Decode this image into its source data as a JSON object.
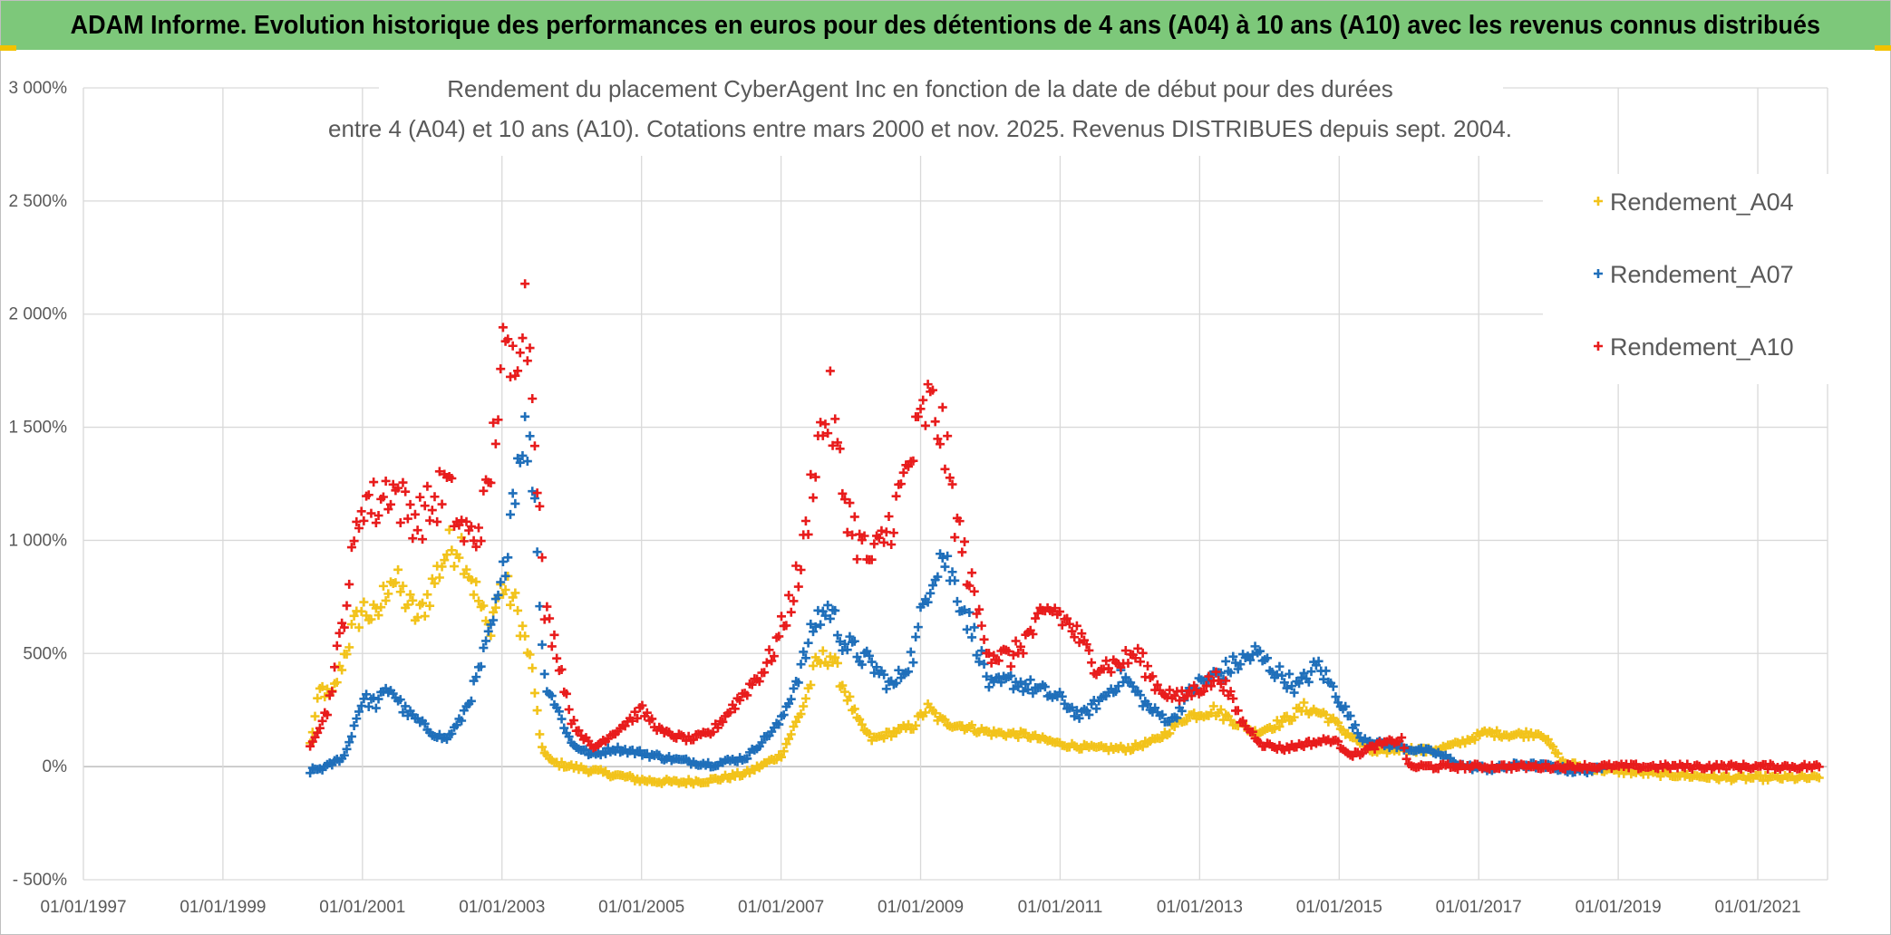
{
  "header": {
    "title": "ADAM Informe. Evolution historique des performances en euros pour des détentions de 4 ans (A04) à 10 ans (A10) avec les revenus connus distribués"
  },
  "chart_data": {
    "type": "scatter",
    "title_line1": "Rendement du placement CyberAgent Inc en fonction de la date de début pour des durées",
    "title_line2": "entre 4 (A04) et 10 ans (A10). Cotations entre mars 2000 et nov. 2025. Revenus DISTRIBUES depuis sept. 2004.",
    "xlabel": "",
    "ylabel": "",
    "x_ticks": [
      "01/01/1997",
      "01/01/1999",
      "01/01/2001",
      "01/01/2003",
      "01/01/2005",
      "01/01/2007",
      "01/01/2009",
      "01/01/2011",
      "01/01/2013",
      "01/01/2015",
      "01/01/2017",
      "01/01/2019",
      "01/01/2021"
    ],
    "x_range": [
      1997.0,
      2022.0
    ],
    "y_ticks": [
      "- 500%",
      "0%",
      "500%",
      "1 000%",
      "1 500%",
      "2 000%",
      "2 500%",
      "3 000%"
    ],
    "y_range": [
      -500,
      3000
    ],
    "legend_position": "right",
    "series": [
      {
        "name": "Rendement_A04",
        "color": "#f2c31b",
        "x_range": [
          2000.25,
          2021.9
        ],
        "points": [
          [
            2000.25,
            100
          ],
          [
            2000.4,
            350
          ],
          [
            2000.55,
            300
          ],
          [
            2000.7,
            450
          ],
          [
            2000.85,
            600
          ],
          [
            2001.0,
            700
          ],
          [
            2001.2,
            650
          ],
          [
            2001.4,
            850
          ],
          [
            2001.6,
            750
          ],
          [
            2001.8,
            650
          ],
          [
            2002.0,
            800
          ],
          [
            2002.2,
            950
          ],
          [
            2002.4,
            1000
          ],
          [
            2002.6,
            800
          ],
          [
            2002.8,
            600
          ],
          [
            2003.0,
            800
          ],
          [
            2003.15,
            750
          ],
          [
            2003.3,
            600
          ],
          [
            2003.45,
            400
          ],
          [
            2003.55,
            100
          ],
          [
            2003.7,
            20
          ],
          [
            2004.0,
            0
          ],
          [
            2004.5,
            -30
          ],
          [
            2005.0,
            -60
          ],
          [
            2005.5,
            -70
          ],
          [
            2006.0,
            -60
          ],
          [
            2006.5,
            -30
          ],
          [
            2007.0,
            50
          ],
          [
            2007.3,
            250
          ],
          [
            2007.5,
            450
          ],
          [
            2007.7,
            500
          ],
          [
            2007.9,
            350
          ],
          [
            2008.1,
            200
          ],
          [
            2008.3,
            120
          ],
          [
            2008.6,
            150
          ],
          [
            2008.9,
            180
          ],
          [
            2009.1,
            260
          ],
          [
            2009.3,
            200
          ],
          [
            2009.6,
            180
          ],
          [
            2010.0,
            150
          ],
          [
            2010.5,
            140
          ],
          [
            2011.0,
            100
          ],
          [
            2011.5,
            80
          ],
          [
            2012.0,
            80
          ],
          [
            2012.4,
            120
          ],
          [
            2012.8,
            220
          ],
          [
            2013.2,
            250
          ],
          [
            2013.5,
            200
          ],
          [
            2013.8,
            150
          ],
          [
            2014.2,
            200
          ],
          [
            2014.5,
            260
          ],
          [
            2014.8,
            230
          ],
          [
            2015.1,
            150
          ],
          [
            2015.5,
            60
          ],
          [
            2015.9,
            80
          ],
          [
            2016.3,
            70
          ],
          [
            2016.7,
            100
          ],
          [
            2017.1,
            150
          ],
          [
            2017.5,
            140
          ],
          [
            2017.9,
            150
          ],
          [
            2018.2,
            20
          ],
          [
            2018.6,
            -10
          ],
          [
            2019.0,
            -20
          ],
          [
            2019.5,
            -30
          ],
          [
            2020.0,
            -40
          ],
          [
            2020.5,
            -50
          ],
          [
            2021.0,
            -50
          ],
          [
            2021.9,
            -50
          ]
        ]
      },
      {
        "name": "Rendement_A07",
        "color": "#1f6fba",
        "x_range": [
          2000.25,
          2018.8
        ],
        "points": [
          [
            2000.25,
            -20
          ],
          [
            2000.5,
            0
          ],
          [
            2000.75,
            50
          ],
          [
            2001.0,
            300
          ],
          [
            2001.2,
            280
          ],
          [
            2001.4,
            350
          ],
          [
            2001.6,
            250
          ],
          [
            2001.8,
            200
          ],
          [
            2002.0,
            150
          ],
          [
            2002.2,
            120
          ],
          [
            2002.4,
            200
          ],
          [
            2002.6,
            350
          ],
          [
            2002.8,
            550
          ],
          [
            2003.0,
            800
          ],
          [
            2003.15,
            1200
          ],
          [
            2003.3,
            1500
          ],
          [
            2003.45,
            1300
          ],
          [
            2003.6,
            400
          ],
          [
            2003.8,
            250
          ],
          [
            2004.0,
            100
          ],
          [
            2004.3,
            50
          ],
          [
            2004.6,
            80
          ],
          [
            2005.0,
            60
          ],
          [
            2005.5,
            30
          ],
          [
            2006.0,
            10
          ],
          [
            2006.5,
            40
          ],
          [
            2007.0,
            200
          ],
          [
            2007.3,
            450
          ],
          [
            2007.5,
            650
          ],
          [
            2007.7,
            700
          ],
          [
            2007.9,
            550
          ],
          [
            2008.1,
            500
          ],
          [
            2008.3,
            450
          ],
          [
            2008.6,
            350
          ],
          [
            2008.9,
            500
          ],
          [
            2009.1,
            800
          ],
          [
            2009.3,
            950
          ],
          [
            2009.5,
            800
          ],
          [
            2009.8,
            550
          ],
          [
            2010.0,
            350
          ],
          [
            2010.3,
            380
          ],
          [
            2010.6,
            350
          ],
          [
            2011.0,
            300
          ],
          [
            2011.3,
            220
          ],
          [
            2011.6,
            300
          ],
          [
            2011.9,
            400
          ],
          [
            2012.3,
            250
          ],
          [
            2012.6,
            200
          ],
          [
            2012.9,
            350
          ],
          [
            2013.2,
            400
          ],
          [
            2013.5,
            450
          ],
          [
            2013.8,
            500
          ],
          [
            2014.1,
            420
          ],
          [
            2014.4,
            350
          ],
          [
            2014.7,
            450
          ],
          [
            2015.0,
            300
          ],
          [
            2015.3,
            130
          ],
          [
            2015.6,
            100
          ],
          [
            2016.0,
            80
          ],
          [
            2016.4,
            60
          ],
          [
            2016.8,
            0
          ],
          [
            2017.2,
            -10
          ],
          [
            2017.6,
            10
          ],
          [
            2018.0,
            0
          ],
          [
            2018.4,
            -20
          ],
          [
            2018.8,
            -10
          ]
        ]
      },
      {
        "name": "Rendement_A10",
        "color": "#e81c1c",
        "x_range": [
          2000.25,
          2021.9
        ],
        "points": [
          [
            2000.25,
            100
          ],
          [
            2000.5,
            250
          ],
          [
            2000.75,
            700
          ],
          [
            2001.0,
            1200
          ],
          [
            2001.2,
            1150
          ],
          [
            2001.4,
            1250
          ],
          [
            2001.6,
            1150
          ],
          [
            2001.8,
            1100
          ],
          [
            2002.0,
            1150
          ],
          [
            2002.2,
            1250
          ],
          [
            2002.4,
            1050
          ],
          [
            2002.6,
            1000
          ],
          [
            2002.8,
            1200
          ],
          [
            2003.0,
            1800
          ],
          [
            2003.15,
            1750
          ],
          [
            2003.3,
            2100
          ],
          [
            2003.45,
            1700
          ],
          [
            2003.6,
            700
          ],
          [
            2003.8,
            500
          ],
          [
            2004.0,
            200
          ],
          [
            2004.3,
            80
          ],
          [
            2004.6,
            150
          ],
          [
            2005.0,
            250
          ],
          [
            2005.3,
            150
          ],
          [
            2005.7,
            120
          ],
          [
            2006.0,
            150
          ],
          [
            2006.4,
            300
          ],
          [
            2006.8,
            450
          ],
          [
            2007.0,
            600
          ],
          [
            2007.3,
            900
          ],
          [
            2007.5,
            1400
          ],
          [
            2007.7,
            1600
          ],
          [
            2007.9,
            1200
          ],
          [
            2008.1,
            1000
          ],
          [
            2008.3,
            900
          ],
          [
            2008.6,
            1100
          ],
          [
            2008.9,
            1400
          ],
          [
            2009.1,
            1600
          ],
          [
            2009.3,
            1500
          ],
          [
            2009.5,
            1100
          ],
          [
            2009.8,
            700
          ],
          [
            2010.0,
            500
          ],
          [
            2010.3,
            480
          ],
          [
            2010.6,
            600
          ],
          [
            2010.9,
            700
          ],
          [
            2011.2,
            600
          ],
          [
            2011.5,
            450
          ],
          [
            2011.8,
            450
          ],
          [
            2012.1,
            500
          ],
          [
            2012.4,
            350
          ],
          [
            2012.7,
            300
          ],
          [
            2013.0,
            350
          ],
          [
            2013.3,
            400
          ],
          [
            2013.6,
            200
          ],
          [
            2013.9,
            100
          ],
          [
            2014.2,
            80
          ],
          [
            2014.5,
            100
          ],
          [
            2014.9,
            120
          ],
          [
            2015.2,
            50
          ],
          [
            2015.6,
            100
          ],
          [
            2015.9,
            120
          ],
          [
            2016.0,
            0
          ],
          [
            2017.0,
            0
          ],
          [
            2018.0,
            0
          ],
          [
            2019.0,
            0
          ],
          [
            2020.0,
            0
          ],
          [
            2021.0,
            0
          ],
          [
            2021.9,
            0
          ]
        ]
      }
    ]
  }
}
